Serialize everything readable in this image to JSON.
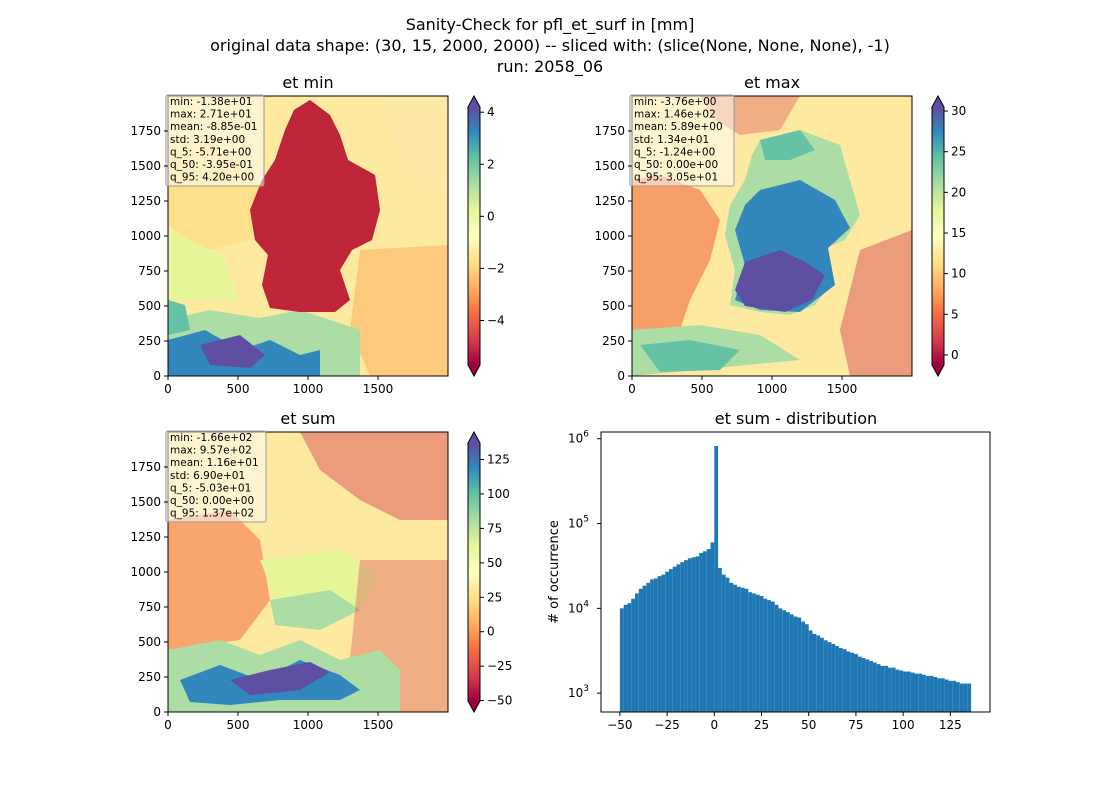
{
  "suptitle": [
    "Sanity-Check for pfl_et_surf in [mm]",
    "original data shape: (30, 15, 2000, 2000) -- sliced with: (slice(None, None, None), -1)",
    "run: 2058_06"
  ],
  "chart_data": [
    {
      "type": "heatmap",
      "title": "et min",
      "xlim": [
        0,
        2000
      ],
      "ylim": [
        0,
        2000
      ],
      "xticks": [
        0,
        500,
        1000,
        1500
      ],
      "yticks": [
        0,
        250,
        500,
        750,
        1000,
        1250,
        1500,
        1750
      ],
      "colormap": "Spectral",
      "colorbar": {
        "range": [
          -5.71,
          4.2
        ],
        "ticks": [
          4,
          2,
          0,
          -2,
          -4
        ],
        "extend": "both"
      },
      "stats": [
        "min: -1.38e+01",
        "max: 2.71e+01",
        "mean: -8.85e-01",
        "std: 3.19e+00",
        "q_5: -5.71e+00",
        "q_50: -3.95e-01",
        "q_95: 4.20e+00"
      ]
    },
    {
      "type": "heatmap",
      "title": "et max",
      "xlim": [
        0,
        2000
      ],
      "ylim": [
        0,
        2000
      ],
      "xticks": [
        0,
        500,
        1000,
        1500
      ],
      "yticks": [
        0,
        250,
        500,
        750,
        1000,
        1250,
        1500,
        1750
      ],
      "colormap": "Spectral",
      "colorbar": {
        "range": [
          -1.24,
          30.5
        ],
        "ticks": [
          30,
          25,
          20,
          15,
          10,
          5,
          0
        ],
        "extend": "both"
      },
      "stats": [
        "min: -3.76e+00",
        "max: 1.46e+02",
        "mean: 5.89e+00",
        "std: 1.34e+01",
        "q_5: -1.24e+00",
        "q_50: 0.00e+00",
        "q_95: 3.05e+01"
      ]
    },
    {
      "type": "heatmap",
      "title": "et sum",
      "xlim": [
        0,
        2000
      ],
      "ylim": [
        0,
        2000
      ],
      "xticks": [
        0,
        500,
        1000,
        1500
      ],
      "yticks": [
        0,
        250,
        500,
        750,
        1000,
        1250,
        1500,
        1750
      ],
      "colormap": "Spectral",
      "colorbar": {
        "range": [
          -50.3,
          137
        ],
        "ticks": [
          125,
          100,
          75,
          50,
          25,
          0,
          -25,
          -50
        ],
        "extend": "both"
      },
      "stats": [
        "min: -1.66e+02",
        "max: 9.57e+02",
        "mean: 1.16e+01",
        "std: 6.90e+01",
        "q_5: -5.03e+01",
        "q_50: 0.00e+00",
        "q_95: 1.37e+02"
      ]
    },
    {
      "type": "bar",
      "title": "et sum - distribution",
      "ylabel": "# of occurrence",
      "yscale": "log",
      "xlim": [
        -60,
        146
      ],
      "ylim": [
        600,
        1200000
      ],
      "xticks": [
        -50,
        -25,
        0,
        25,
        50,
        75,
        100,
        125
      ],
      "yticks": [
        {
          "base": "10",
          "exp": "3"
        },
        {
          "base": "10",
          "exp": "4"
        },
        {
          "base": "10",
          "exp": "5"
        },
        {
          "base": "10",
          "exp": "6"
        }
      ],
      "color": "#1f77b4",
      "bins": [
        -50,
        -48,
        -46,
        -44,
        -42,
        -40,
        -38,
        -36,
        -34,
        -32,
        -30,
        -28,
        -26,
        -24,
        -22,
        -20,
        -18,
        -16,
        -14,
        -12,
        -10,
        -8,
        -6,
        -4,
        -2,
        0,
        2,
        4,
        6,
        8,
        10,
        12,
        14,
        16,
        18,
        20,
        22,
        24,
        26,
        28,
        30,
        32,
        34,
        36,
        38,
        40,
        42,
        44,
        46,
        48,
        50,
        52,
        54,
        56,
        58,
        60,
        62,
        64,
        66,
        68,
        70,
        72,
        74,
        76,
        78,
        80,
        82,
        84,
        86,
        88,
        90,
        92,
        94,
        96,
        98,
        100,
        102,
        104,
        106,
        108,
        110,
        112,
        114,
        116,
        118,
        120,
        122,
        124,
        126,
        128,
        130,
        132,
        134
      ],
      "values": [
        10000,
        11000,
        11500,
        13000,
        15000,
        17000,
        18500,
        20000,
        22000,
        22500,
        24000,
        25000,
        27000,
        29000,
        31000,
        33000,
        35000,
        37000,
        39000,
        40000,
        41000,
        45000,
        47000,
        50000,
        60000,
        820000,
        30000,
        25000,
        23000,
        20000,
        19000,
        18000,
        17500,
        17000,
        15500,
        15000,
        14500,
        14000,
        13000,
        12500,
        12000,
        11000,
        10000,
        9500,
        9000,
        8500,
        8000,
        7800,
        7000,
        6500,
        5500,
        5000,
        4800,
        4500,
        4200,
        4000,
        3800,
        3600,
        3400,
        3300,
        3100,
        3000,
        2900,
        2700,
        2600,
        2500,
        2400,
        2300,
        2200,
        2100,
        2100,
        2000,
        2000,
        1900,
        1850,
        1800,
        1800,
        1750,
        1700,
        1700,
        1650,
        1600,
        1600,
        1550,
        1500,
        1500,
        1450,
        1400,
        1400,
        1350,
        1300,
        1300,
        1300
      ]
    }
  ]
}
